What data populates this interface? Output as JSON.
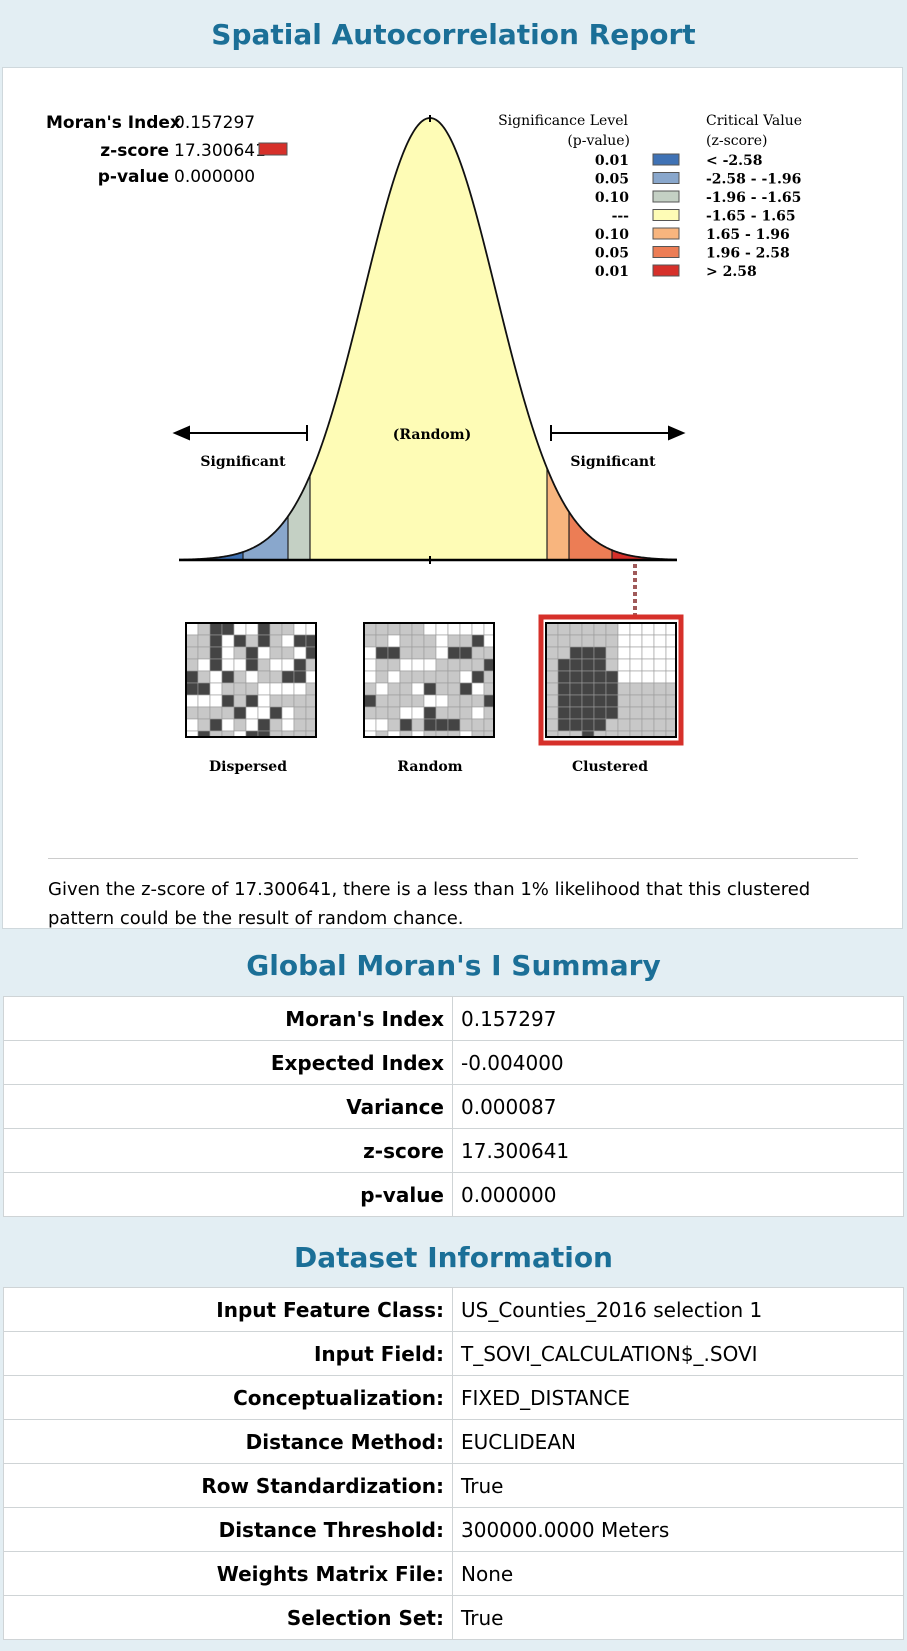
{
  "report": {
    "title": "Spatial Autocorrelation Report",
    "stats": {
      "morans_label": "Moran's Index",
      "morans_value": "0.157297",
      "z_label": "z-score",
      "z_value": "17.300641",
      "p_label": "p-value",
      "p_value": "0.000000"
    },
    "legend": {
      "sig_header_1": "Significance Level",
      "sig_header_2": "(p-value)",
      "crit_header_1": "Critical Value",
      "crit_header_2": "(z-score)",
      "rows": [
        {
          "p": "0.01",
          "z": "< -2.58",
          "color": "#3f72b5"
        },
        {
          "p": "0.05",
          "z": "-2.58 - -1.96",
          "color": "#89a7cc"
        },
        {
          "p": "0.10",
          "z": "-1.96 - -1.65",
          "color": "#c4d0c4"
        },
        {
          "p": "---",
          "z": "-1.65 - 1.65",
          "color": "#fefcb6"
        },
        {
          "p": "0.10",
          "z": "1.65 - 1.96",
          "color": "#f8b57e"
        },
        {
          "p": "0.05",
          "z": "1.96 - 2.58",
          "color": "#ec7d55"
        },
        {
          "p": "0.01",
          "z": "> 2.58",
          "color": "#d6302a"
        }
      ]
    },
    "curve_labels": {
      "random": "(Random)",
      "significant_left": "Significant",
      "significant_right": "Significant"
    },
    "patterns": [
      {
        "label": "Dispersed"
      },
      {
        "label": "Random"
      },
      {
        "label": "Clustered"
      }
    ],
    "highlight_color": "#d6302a",
    "conclusion": "Given the z-score of 17.300641, there is a less than 1% likelihood that this clustered pattern could be the result of random chance."
  },
  "summary": {
    "title": "Global Moran's I Summary",
    "rows": [
      {
        "key": "Moran's Index",
        "value": "0.157297"
      },
      {
        "key": "Expected Index",
        "value": "-0.004000"
      },
      {
        "key": "Variance",
        "value": "0.000087"
      },
      {
        "key": "z-score",
        "value": "17.300641"
      },
      {
        "key": "p-value",
        "value": "0.000000"
      }
    ]
  },
  "dataset": {
    "title": "Dataset Information",
    "rows": [
      {
        "key": "Input Feature Class:",
        "value": "US_Counties_2016 selection 1"
      },
      {
        "key": "Input Field:",
        "value": "T_SOVI_CALCULATION$_.SOVI"
      },
      {
        "key": "Conceptualization:",
        "value": "FIXED_DISTANCE"
      },
      {
        "key": "Distance Method:",
        "value": "EUCLIDEAN"
      },
      {
        "key": "Row Standardization:",
        "value": "True"
      },
      {
        "key": "Distance Threshold:",
        "value": "300000.0000 Meters"
      },
      {
        "key": "Weights Matrix File:",
        "value": "None"
      },
      {
        "key": "Selection Set:",
        "value": "True"
      }
    ]
  },
  "accent_color": "#1b6f97"
}
